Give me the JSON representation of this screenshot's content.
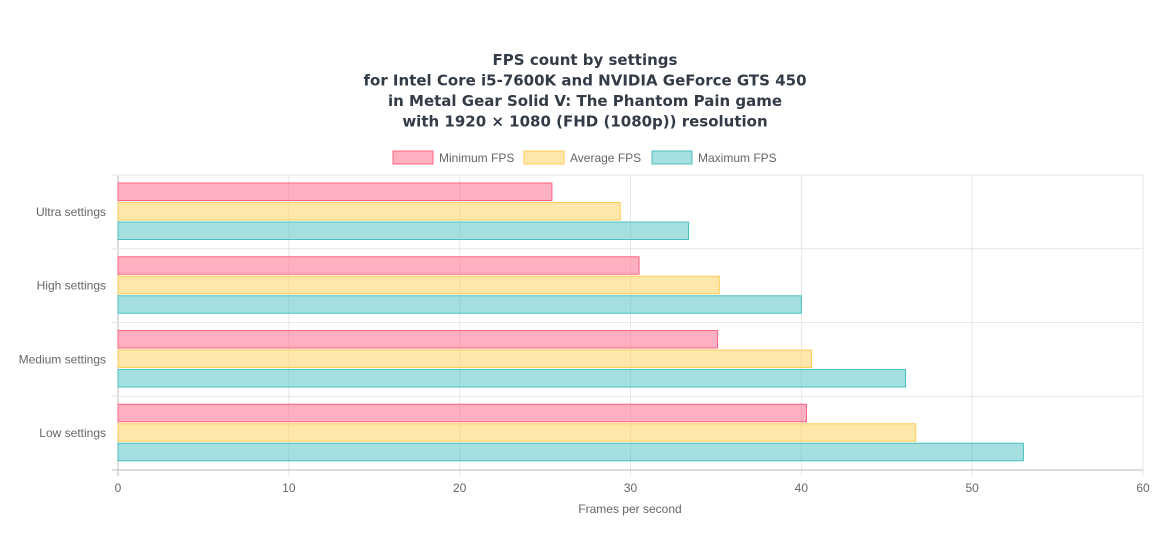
{
  "chart_data": {
    "type": "bar",
    "orientation": "horizontal",
    "title": [
      "FPS count by settings",
      "for Intel Core i5-7600K and NVIDIA GeForce GTS 450",
      "in Metal Gear Solid V: The Phantom Pain game",
      "with 1920 × 1080 (FHD (1080p)) resolution"
    ],
    "categories": [
      "Ultra settings",
      "High settings",
      "Medium settings",
      "Low settings"
    ],
    "series": [
      {
        "name": "Minimum FPS",
        "values": [
          25.4,
          30.5,
          35.1,
          40.3
        ],
        "color": "#ff6384"
      },
      {
        "name": "Average FPS",
        "values": [
          29.4,
          35.2,
          40.6,
          46.7
        ],
        "color": "#ffcd56"
      },
      {
        "name": "Maximum FPS",
        "values": [
          33.4,
          40.0,
          46.1,
          53.0
        ],
        "color": "#4bc0c0"
      }
    ],
    "xlabel": "Frames per second",
    "ylabel": "",
    "xlim": [
      0,
      60
    ],
    "xticks": [
      0,
      10,
      20,
      30,
      40,
      50,
      60
    ],
    "grid": true,
    "legend": "top-center"
  }
}
